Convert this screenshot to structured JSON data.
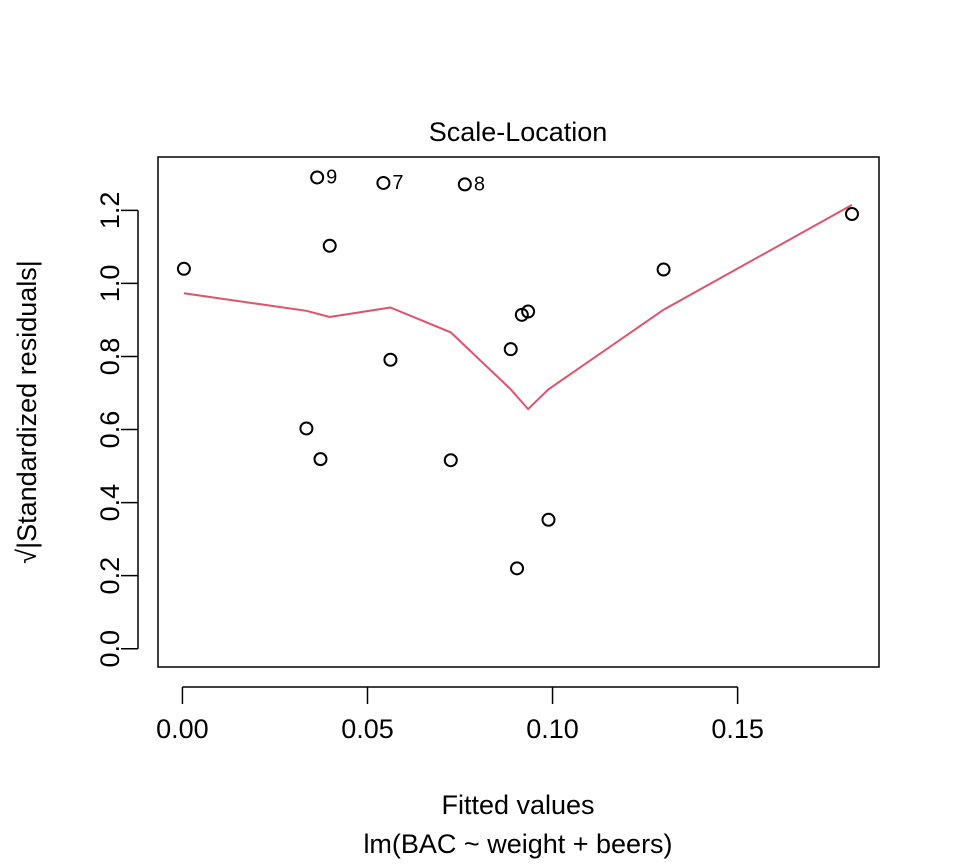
{
  "chart_data": {
    "type": "scatter",
    "title": "Scale-Location",
    "xlabel": "Fitted values",
    "sublabel": "lm(BAC ~ weight + beers)",
    "ylabel": "√|Standardized residuals|",
    "xlim": [
      -0.0066,
      0.1882
    ],
    "ylim": [
      -0.05,
      1.346
    ],
    "xticks": [
      0.0,
      0.05,
      0.1,
      0.15
    ],
    "xtick_labels": [
      "0.00",
      "0.05",
      "0.10",
      "0.15"
    ],
    "yticks": [
      0.0,
      0.2,
      0.4,
      0.6,
      0.8,
      1.0,
      1.2
    ],
    "ytick_labels": [
      "0.0",
      "0.2",
      "0.4",
      "0.6",
      "0.8",
      "1.0",
      "1.2"
    ],
    "grid": false,
    "colors": {
      "points": "#000000",
      "smooth": "#DF536B",
      "axes": "#000000"
    },
    "points": [
      {
        "x": 0.0004,
        "y": 1.04,
        "label": ""
      },
      {
        "x": 0.0335,
        "y": 0.603,
        "label": ""
      },
      {
        "x": 0.0364,
        "y": 1.29,
        "label": "9"
      },
      {
        "x": 0.0373,
        "y": 0.519,
        "label": ""
      },
      {
        "x": 0.0398,
        "y": 1.103,
        "label": ""
      },
      {
        "x": 0.0543,
        "y": 1.275,
        "label": "7"
      },
      {
        "x": 0.0562,
        "y": 0.791,
        "label": ""
      },
      {
        "x": 0.0725,
        "y": 0.516,
        "label": ""
      },
      {
        "x": 0.0763,
        "y": 1.271,
        "label": "8"
      },
      {
        "x": 0.0887,
        "y": 0.82,
        "label": ""
      },
      {
        "x": 0.0904,
        "y": 0.22,
        "label": ""
      },
      {
        "x": 0.0917,
        "y": 0.914,
        "label": ""
      },
      {
        "x": 0.0934,
        "y": 0.923,
        "label": ""
      },
      {
        "x": 0.0989,
        "y": 0.353,
        "label": ""
      },
      {
        "x": 0.13,
        "y": 1.038,
        "label": ""
      },
      {
        "x": 0.1809,
        "y": 1.19,
        "label": ""
      }
    ],
    "smooth_line": [
      {
        "x": 0.0004,
        "y": 0.973
      },
      {
        "x": 0.0335,
        "y": 0.925
      },
      {
        "x": 0.0398,
        "y": 0.908
      },
      {
        "x": 0.0562,
        "y": 0.934
      },
      {
        "x": 0.0725,
        "y": 0.866
      },
      {
        "x": 0.0887,
        "y": 0.71
      },
      {
        "x": 0.0934,
        "y": 0.656
      },
      {
        "x": 0.0989,
        "y": 0.71
      },
      {
        "x": 0.13,
        "y": 0.928
      },
      {
        "x": 0.1809,
        "y": 1.215
      }
    ]
  }
}
